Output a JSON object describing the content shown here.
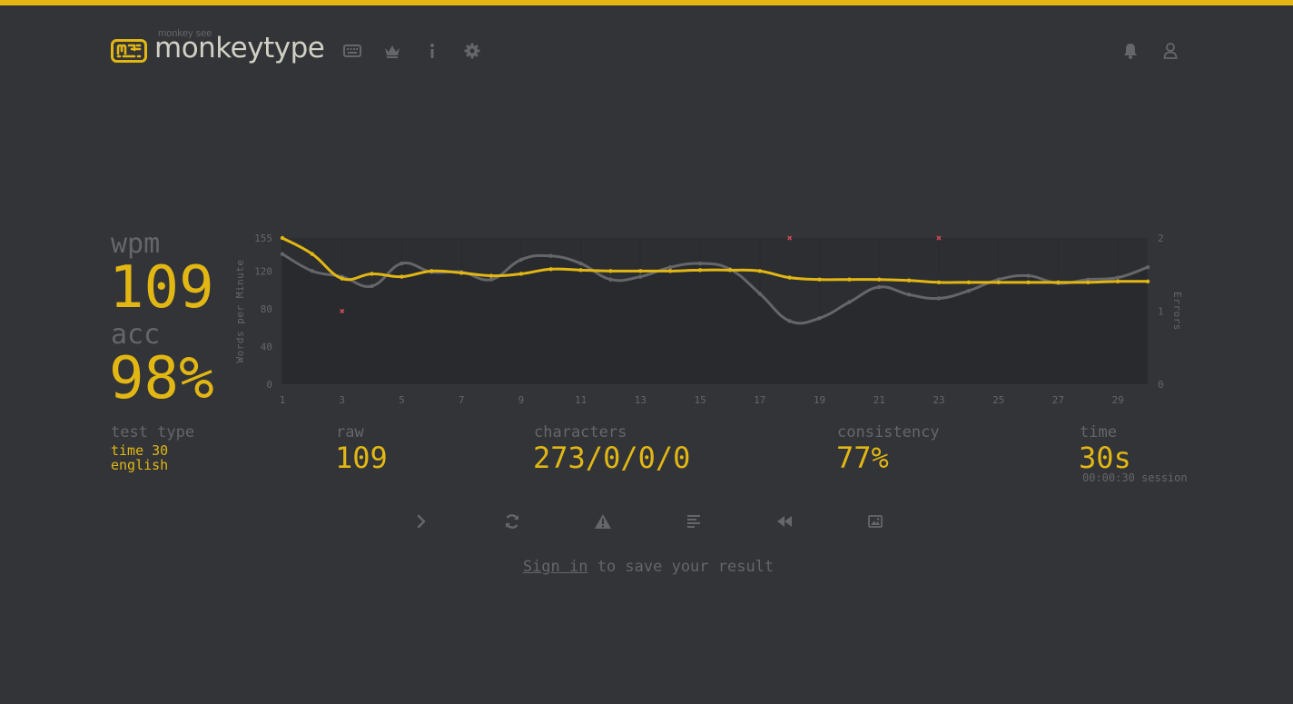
{
  "colors": {
    "accent": "#e2b714",
    "background": "#323437",
    "subtle": "#646669",
    "text": "#d1d0c5",
    "error": "#ca4754"
  },
  "header": {
    "logo_top_text": "monkey see",
    "logo_text": "monkeytype",
    "nav_icons": [
      "keyboard-icon",
      "crown-icon",
      "info-icon",
      "gear-icon"
    ],
    "right_icons": [
      "bell-icon",
      "user-icon"
    ]
  },
  "result": {
    "wpm_label": "wpm",
    "wpm_value": "109",
    "acc_label": "acc",
    "acc_value": "98%",
    "test_type_label": "test type",
    "test_type_value": "time 30",
    "language": "english",
    "raw_label": "raw",
    "raw_value": "109",
    "characters_label": "characters",
    "characters_value": "273/0/0/0",
    "consistency_label": "consistency",
    "consistency_value": "77%",
    "time_label": "time",
    "time_value": "30s",
    "session_text": "00:00:30 session"
  },
  "chart_data": {
    "type": "line",
    "x": [
      1,
      2,
      3,
      4,
      5,
      6,
      7,
      8,
      9,
      10,
      11,
      12,
      13,
      14,
      15,
      16,
      17,
      18,
      19,
      20,
      21,
      22,
      23,
      24,
      25,
      26,
      27,
      28,
      29,
      30
    ],
    "x_tick_labels": [
      "1",
      "3",
      "5",
      "7",
      "9",
      "11",
      "13",
      "15",
      "17",
      "19",
      "21",
      "23",
      "25",
      "27",
      "29"
    ],
    "ylabel": "Words per Minute",
    "ylim": [
      0,
      155
    ],
    "y_ticks": [
      "0",
      "40",
      "80",
      "120",
      "155"
    ],
    "y2label": "Errors",
    "y2lim": [
      0,
      2
    ],
    "y2_ticks": [
      "0",
      "1",
      "2"
    ],
    "grid": true,
    "series": [
      {
        "color": "#e2b714",
        "values": [
          155,
          138,
          112,
          117,
          114,
          120,
          118,
          115,
          117,
          122,
          121,
          120,
          120,
          120,
          121,
          121,
          120,
          113,
          111,
          111,
          111,
          110,
          108,
          108,
          108,
          108,
          108,
          108,
          109,
          109
        ]
      },
      {
        "color": "#646669",
        "values": [
          138,
          120,
          114,
          104,
          128,
          119,
          119,
          111,
          132,
          136,
          128,
          111,
          114,
          124,
          128,
          122,
          96,
          67,
          70,
          87,
          103,
          95,
          91,
          99,
          111,
          115,
          107,
          111,
          113,
          124
        ]
      }
    ],
    "errors": [
      {
        "x": 3,
        "count": 1
      },
      {
        "x": 18,
        "count": 2
      },
      {
        "x": 23,
        "count": 2
      }
    ]
  },
  "actions": [
    "next-test",
    "restart-test",
    "show-words-history",
    "show-replay",
    "save-screenshot",
    "report"
  ],
  "signin": {
    "link_text": "Sign in",
    "rest_text": " to save your result"
  }
}
